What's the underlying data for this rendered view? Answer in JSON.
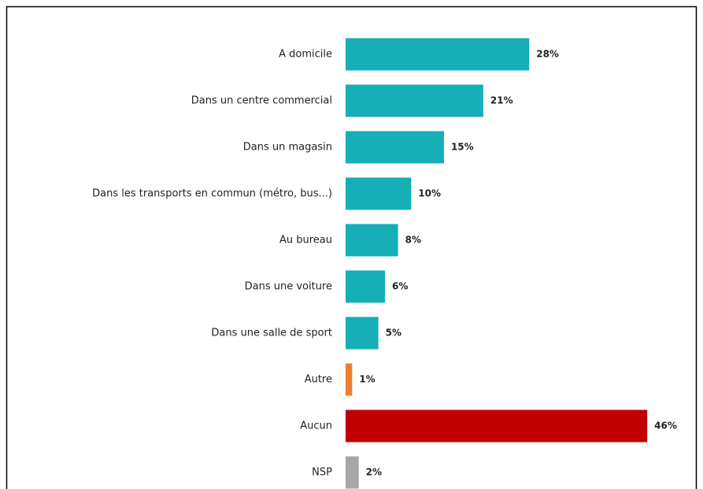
{
  "chart_data": {
    "type": "bar",
    "orientation": "horizontal",
    "categories": [
      "A domicile",
      "Dans un centre commercial",
      "Dans un magasin",
      "Dans les transports en commun (métro, bus...)",
      "Au bureau",
      "Dans une voiture",
      "Dans une salle de sport",
      "Autre",
      "Aucun",
      "NSP"
    ],
    "values": [
      28,
      21,
      15,
      10,
      8,
      6,
      5,
      1,
      46,
      2
    ],
    "value_labels": [
      "28%",
      "21%",
      "15%",
      "10%",
      "8%",
      "6%",
      "5%",
      "1%",
      "46%",
      "2%"
    ],
    "colors": [
      "#16aeb7",
      "#16aeb7",
      "#16aeb7",
      "#16aeb7",
      "#16aeb7",
      "#16aeb7",
      "#16aeb7",
      "#ed7d31",
      "#c00000",
      "#a6a6a6"
    ]
  }
}
